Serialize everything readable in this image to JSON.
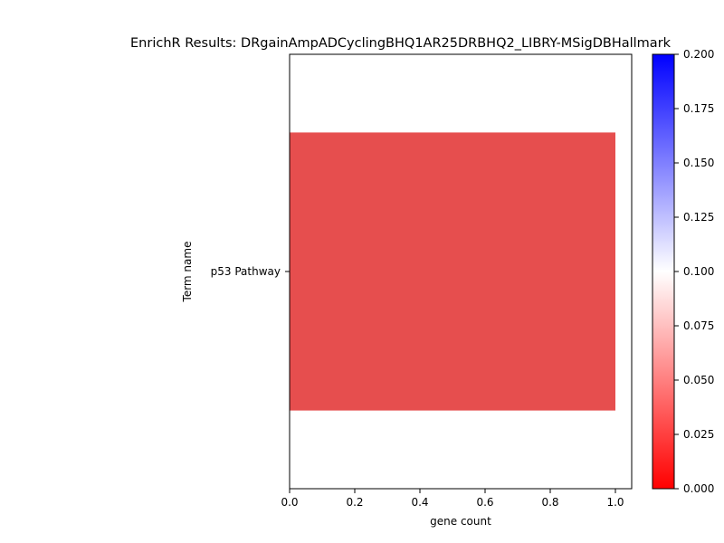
{
  "chart_data": {
    "type": "bar",
    "orientation": "horizontal",
    "title": "EnrichR Results: DRgainAmpADCyclingBHQ1AR25DRBHQ2_LIBRY-MSigDBHallmark",
    "xlabel": "gene count",
    "ylabel": "Term name",
    "categories": [
      "p53 Pathway"
    ],
    "values": [
      1
    ],
    "color_values": [
      0.03
    ],
    "xlim": [
      0,
      1.05
    ],
    "xticks": [
      "0.0",
      "0.2",
      "0.4",
      "0.6",
      "0.8",
      "1.0"
    ],
    "grid": false,
    "colorbar": {
      "colormap": "bwr_r",
      "range": [
        0,
        0.2
      ],
      "ticks": [
        "0.000",
        "0.025",
        "0.050",
        "0.075",
        "0.100",
        "0.125",
        "0.150",
        "0.175",
        "0.200"
      ],
      "colors": [
        "#ff0000",
        "#ffffff",
        "#0000ff"
      ]
    },
    "bar_color": "#e64e4e"
  }
}
